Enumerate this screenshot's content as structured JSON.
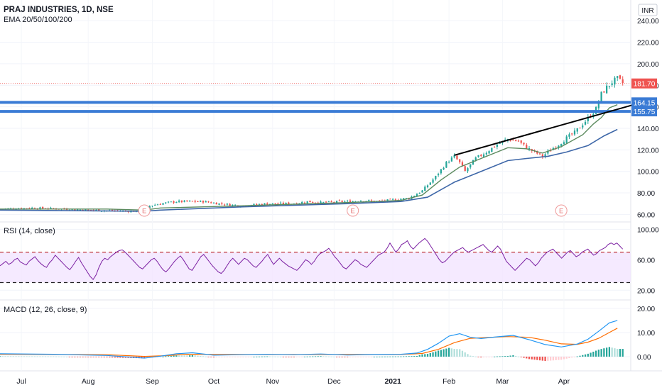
{
  "header": {
    "symbol": "PRAJ INDUSTRIES, 1D, NSE",
    "indicator": "EMA 20/50/100/200",
    "currency": "INR"
  },
  "colors": {
    "up": "#26a69a",
    "down": "#ef5350",
    "ema20": "#5b8a5e",
    "ema50": "#3e67a8",
    "level": "#3a7bd5",
    "trendline": "#000000",
    "rsi": "#7b1fa2",
    "macd": "#2196f3",
    "signal": "#ff6d00"
  },
  "chart_data": [
    {
      "type": "candlestick",
      "title": "PRAJ INDUSTRIES, 1D, NSE",
      "ylim": [
        55,
        250
      ],
      "yticks": [
        60,
        80,
        100,
        120,
        140,
        160,
        180,
        200,
        220,
        240
      ],
      "ytick_labels": [
        "60.00",
        "80.00",
        "100.00",
        "120.00",
        "140.00",
        "160.00",
        "180.00",
        "200.00",
        "220.00",
        "240.00"
      ],
      "xlabels": [
        "Jul",
        "Aug",
        "Sep",
        "Oct",
        "Nov",
        "Dec",
        "2021",
        "Feb",
        "Mar",
        "Apr"
      ],
      "price_label": "181.70",
      "level_labels": [
        "164.15",
        "155.75"
      ],
      "earnings_marker": "E",
      "close_path": [
        [
          0,
          65
        ],
        [
          12,
          66
        ],
        [
          24,
          65
        ],
        [
          34,
          64
        ],
        [
          50,
          63
        ],
        [
          54,
          62
        ],
        [
          56,
          68
        ],
        [
          60,
          70
        ],
        [
          66,
          72
        ],
        [
          76,
          72
        ],
        [
          82,
          70
        ],
        [
          90,
          68
        ],
        [
          100,
          70
        ],
        [
          110,
          70
        ],
        [
          115,
          72
        ],
        [
          120,
          71
        ],
        [
          130,
          72
        ],
        [
          136,
          73
        ],
        [
          142,
          72
        ],
        [
          148,
          74
        ],
        [
          153,
          75
        ],
        [
          158,
          82
        ],
        [
          163,
          95
        ],
        [
          167,
          108
        ],
        [
          170,
          114
        ],
        [
          172,
          108
        ],
        [
          174,
          100
        ],
        [
          178,
          112
        ],
        [
          182,
          118
        ],
        [
          186,
          125
        ],
        [
          190,
          130
        ],
        [
          194,
          128
        ],
        [
          197,
          122
        ],
        [
          200,
          118
        ],
        [
          203,
          114
        ],
        [
          206,
          120
        ],
        [
          209,
          125
        ],
        [
          212,
          131
        ],
        [
          215,
          136
        ],
        [
          218,
          144
        ],
        [
          221,
          152
        ],
        [
          223,
          158
        ],
        [
          225,
          172
        ],
        [
          227,
          178
        ],
        [
          229,
          183
        ],
        [
          231,
          186
        ],
        [
          233,
          182
        ]
      ],
      "ema20": [
        [
          0,
          65
        ],
        [
          40,
          65
        ],
        [
          54,
          64
        ],
        [
          60,
          66
        ],
        [
          90,
          68
        ],
        [
          130,
          71
        ],
        [
          150,
          73
        ],
        [
          158,
          78
        ],
        [
          165,
          92
        ],
        [
          172,
          104
        ],
        [
          180,
          112
        ],
        [
          190,
          122
        ],
        [
          197,
          121
        ],
        [
          203,
          117
        ],
        [
          210,
          123
        ],
        [
          218,
          134
        ],
        [
          222,
          144
        ],
        [
          225,
          150
        ],
        [
          228,
          159
        ],
        [
          231,
          162
        ]
      ],
      "ema50": [
        [
          0,
          64
        ],
        [
          54,
          63
        ],
        [
          60,
          64
        ],
        [
          90,
          67
        ],
        [
          130,
          70
        ],
        [
          150,
          72
        ],
        [
          160,
          76
        ],
        [
          170,
          90
        ],
        [
          180,
          100
        ],
        [
          190,
          110
        ],
        [
          197,
          112
        ],
        [
          205,
          114
        ],
        [
          212,
          118
        ],
        [
          220,
          124
        ],
        [
          226,
          133
        ],
        [
          231,
          139
        ]
      ],
      "resistance_levels": [
        164.15,
        155.75
      ],
      "trendline": [
        [
          170,
          115
        ],
        [
          240,
          164
        ]
      ],
      "earnings_days": [
        54,
        132,
        210
      ]
    },
    {
      "type": "line",
      "title": "RSI (14, close)",
      "ylim": [
        10,
        105
      ],
      "yticks": [
        20,
        60,
        100
      ],
      "ytick_labels": [
        "20.00",
        "60.00",
        "100.00"
      ],
      "bands": [
        30,
        70
      ],
      "values": [
        52,
        55,
        58,
        54,
        56,
        60,
        62,
        57,
        55,
        53,
        58,
        61,
        64,
        59,
        55,
        52,
        50,
        56,
        60,
        66,
        62,
        58,
        54,
        50,
        47,
        52,
        58,
        63,
        56,
        50,
        44,
        38,
        34,
        40,
        50,
        58,
        62,
        60,
        64,
        67,
        70,
        72,
        73,
        70,
        66,
        62,
        58,
        54,
        50,
        48,
        52,
        56,
        60,
        62,
        58,
        52,
        47,
        44,
        48,
        53,
        58,
        62,
        65,
        60,
        54,
        48,
        46,
        52,
        58,
        64,
        67,
        62,
        57,
        52,
        48,
        44,
        42,
        46,
        52,
        58,
        62,
        58,
        54,
        58,
        62,
        60,
        56,
        52,
        50,
        54,
        58,
        63,
        67,
        60,
        54,
        58,
        62,
        58,
        55,
        52,
        50,
        48,
        46,
        50,
        55,
        60,
        58,
        54,
        58,
        64,
        68,
        70,
        72,
        75,
        70,
        64,
        60,
        55,
        50,
        48,
        52,
        56,
        60,
        58,
        54,
        52,
        50,
        54,
        58,
        62,
        66,
        68,
        70,
        75,
        82,
        76,
        70,
        74,
        80,
        82,
        85,
        78,
        74,
        78,
        82,
        85,
        88,
        84,
        78,
        72,
        66,
        60,
        56,
        58,
        62,
        66,
        70,
        72,
        74,
        76,
        72,
        70,
        72,
        74,
        76,
        78,
        80,
        76,
        72,
        70,
        74,
        78,
        74,
        66,
        58,
        54,
        50,
        46,
        50,
        54,
        58,
        62,
        60,
        56,
        52,
        56,
        62,
        66,
        70,
        72,
        74,
        70,
        66,
        62,
        66,
        70,
        72,
        68,
        64,
        66,
        70,
        72,
        74,
        70,
        66,
        68,
        72,
        74,
        76,
        80,
        82,
        80,
        82,
        78,
        74
      ]
    },
    {
      "type": "line",
      "title": "MACD (12, 26, close, 9)",
      "ylim": [
        -5,
        22
      ],
      "yticks": [
        0,
        10,
        20
      ],
      "ytick_labels": [
        "0.00",
        "10.00",
        "20.00"
      ],
      "macd": [
        [
          0,
          1.2
        ],
        [
          20,
          1.0
        ],
        [
          40,
          0.5
        ],
        [
          54,
          -0.6
        ],
        [
          60,
          0.2
        ],
        [
          66,
          1.2
        ],
        [
          72,
          1.6
        ],
        [
          80,
          0.6
        ],
        [
          90,
          0.8
        ],
        [
          100,
          1.0
        ],
        [
          110,
          0.8
        ],
        [
          120,
          1.1
        ],
        [
          130,
          0.7
        ],
        [
          140,
          0.9
        ],
        [
          150,
          1.0
        ],
        [
          156,
          1.5
        ],
        [
          160,
          3.0
        ],
        [
          164,
          5.5
        ],
        [
          168,
          8.5
        ],
        [
          172,
          9.5
        ],
        [
          176,
          8.0
        ],
        [
          180,
          7.5
        ],
        [
          186,
          8.2
        ],
        [
          192,
          8.8
        ],
        [
          198,
          7.0
        ],
        [
          204,
          5.0
        ],
        [
          210,
          4.0
        ],
        [
          216,
          5.2
        ],
        [
          220,
          7.2
        ],
        [
          224,
          10.5
        ],
        [
          228,
          14.0
        ],
        [
          231,
          15.0
        ]
      ],
      "signal": [
        [
          0,
          1.0
        ],
        [
          40,
          0.8
        ],
        [
          54,
          0.1
        ],
        [
          62,
          0.4
        ],
        [
          70,
          1.0
        ],
        [
          80,
          0.9
        ],
        [
          100,
          0.9
        ],
        [
          130,
          0.9
        ],
        [
          150,
          0.9
        ],
        [
          158,
          1.3
        ],
        [
          164,
          3.0
        ],
        [
          170,
          5.8
        ],
        [
          176,
          7.6
        ],
        [
          182,
          7.9
        ],
        [
          190,
          8.3
        ],
        [
          198,
          8.0
        ],
        [
          204,
          6.8
        ],
        [
          210,
          5.3
        ],
        [
          216,
          5.1
        ],
        [
          220,
          6.0
        ],
        [
          224,
          7.6
        ],
        [
          228,
          10.0
        ],
        [
          231,
          11.8
        ]
      ]
    }
  ]
}
